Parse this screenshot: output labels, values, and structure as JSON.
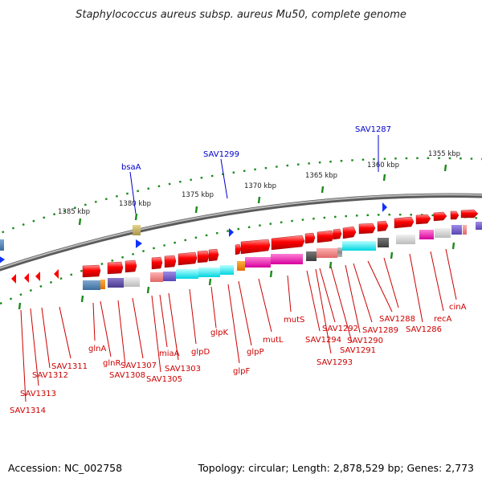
{
  "title": "Staphylococcus aureus subsp. aureus Mu50, complete genome",
  "footer": {
    "accession": "Accession: NC_002758",
    "summary": "Topology: circular; Length: 2,878,529 bp; Genes: 2,773"
  },
  "scale_labels": [
    "1385 kbp",
    "1380 kbp",
    "1375 kbp",
    "1370 kbp",
    "1365 kbp",
    "1360 kbp",
    "1355 kbp"
  ],
  "colors": {
    "forward_gene": "#ff0000",
    "reverse_gene": "#ff0000",
    "cds_label": "#cc0000",
    "feature_label": "#0000cc",
    "backbone": "#808080",
    "tick": "#228b22"
  },
  "upper_labels": [
    "SAV1287",
    "SAV1299",
    "bsaA"
  ],
  "lower_labels": [
    "SAV1314",
    "SAV1313",
    "SAV1312",
    "SAV1311",
    "glnA",
    "glnR",
    "SAV1308",
    "SAV1307",
    "SAV1305",
    "miaA",
    "SAV1303",
    "glpD",
    "glpK",
    "glpF",
    "glpP",
    "mutL",
    "mutS",
    "SAV1294",
    "SAV1293",
    "SAV1292",
    "SAV1291",
    "SAV1290",
    "SAV1289",
    "SAV1288",
    "SAV1286",
    "recA",
    "cinA"
  ]
}
